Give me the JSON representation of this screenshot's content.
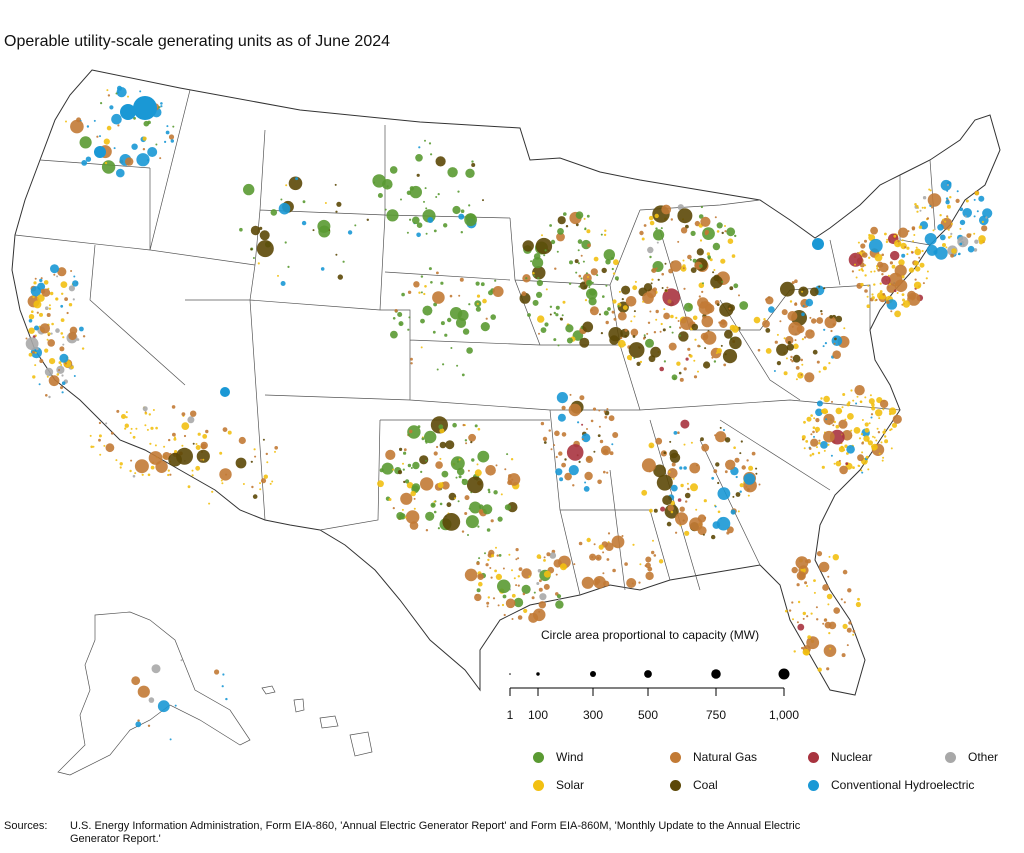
{
  "title": "Operable utility-scale generating units as of June 2024",
  "scale": {
    "title": "Circle area proportional to capacity (MW)",
    "ticks": [
      {
        "label": "1",
        "value": 1
      },
      {
        "label": "100",
        "value": 100
      },
      {
        "label": "300",
        "value": 300
      },
      {
        "label": "500",
        "value": 500
      },
      {
        "label": "750",
        "value": 750
      },
      {
        "label": "1,000",
        "value": 1000
      }
    ]
  },
  "legend": [
    {
      "key": "wind",
      "label": "Wind",
      "color": "#5a9a32"
    },
    {
      "key": "gas",
      "label": "Natural Gas",
      "color": "#c27a35"
    },
    {
      "key": "nuclear",
      "label": "Nuclear",
      "color": "#a8333f"
    },
    {
      "key": "other",
      "label": "Other",
      "color": "#a8a8a8"
    },
    {
      "key": "solar",
      "label": "Solar",
      "color": "#f2c012"
    },
    {
      "key": "coal",
      "label": "Coal",
      "color": "#5c4807"
    },
    {
      "key": "hydro",
      "label": "Conventional Hydroelectric",
      "color": "#1a98d5"
    }
  ],
  "sources": {
    "label": "Sources:",
    "text": "U.S. Energy Information Administration, Form EIA-860, 'Annual Electric Generator Report' and Form EIA-860M, 'Monthly Update to the Annual Electric Generator Report.'"
  }
}
